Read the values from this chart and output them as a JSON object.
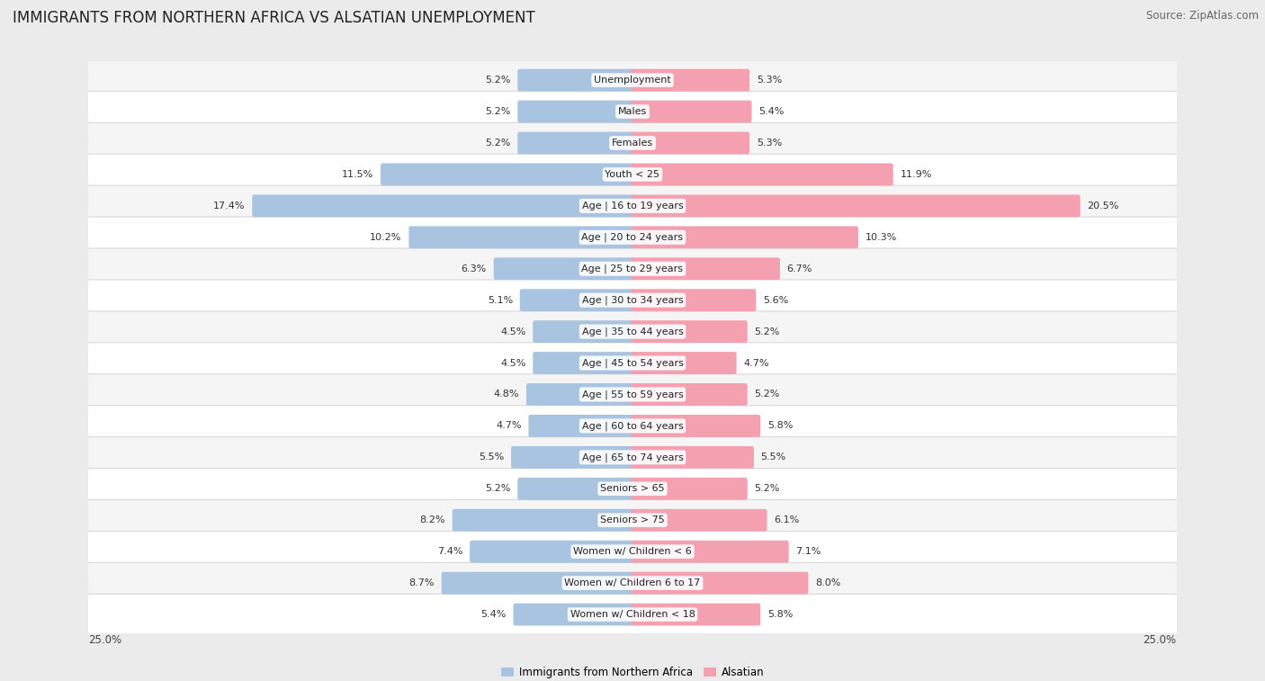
{
  "title": "IMMIGRANTS FROM NORTHERN AFRICA VS ALSATIAN UNEMPLOYMENT",
  "source": "Source: ZipAtlas.com",
  "categories": [
    "Unemployment",
    "Males",
    "Females",
    "Youth < 25",
    "Age | 16 to 19 years",
    "Age | 20 to 24 years",
    "Age | 25 to 29 years",
    "Age | 30 to 34 years",
    "Age | 35 to 44 years",
    "Age | 45 to 54 years",
    "Age | 55 to 59 years",
    "Age | 60 to 64 years",
    "Age | 65 to 74 years",
    "Seniors > 65",
    "Seniors > 75",
    "Women w/ Children < 6",
    "Women w/ Children 6 to 17",
    "Women w/ Children < 18"
  ],
  "left_values": [
    5.2,
    5.2,
    5.2,
    11.5,
    17.4,
    10.2,
    6.3,
    5.1,
    4.5,
    4.5,
    4.8,
    4.7,
    5.5,
    5.2,
    8.2,
    7.4,
    8.7,
    5.4
  ],
  "right_values": [
    5.3,
    5.4,
    5.3,
    11.9,
    20.5,
    10.3,
    6.7,
    5.6,
    5.2,
    4.7,
    5.2,
    5.8,
    5.5,
    5.2,
    6.1,
    7.1,
    8.0,
    5.8
  ],
  "left_color": "#a8c4e0",
  "right_color": "#f4a0b0",
  "bar_height": 0.55,
  "xlim": 25.0,
  "background_color": "#ebebeb",
  "legend_left": "Immigrants from Northern Africa",
  "legend_right": "Alsatian",
  "title_fontsize": 12,
  "source_fontsize": 8.5,
  "label_fontsize": 8,
  "value_fontsize": 8,
  "axis_label_fontsize": 8.5
}
